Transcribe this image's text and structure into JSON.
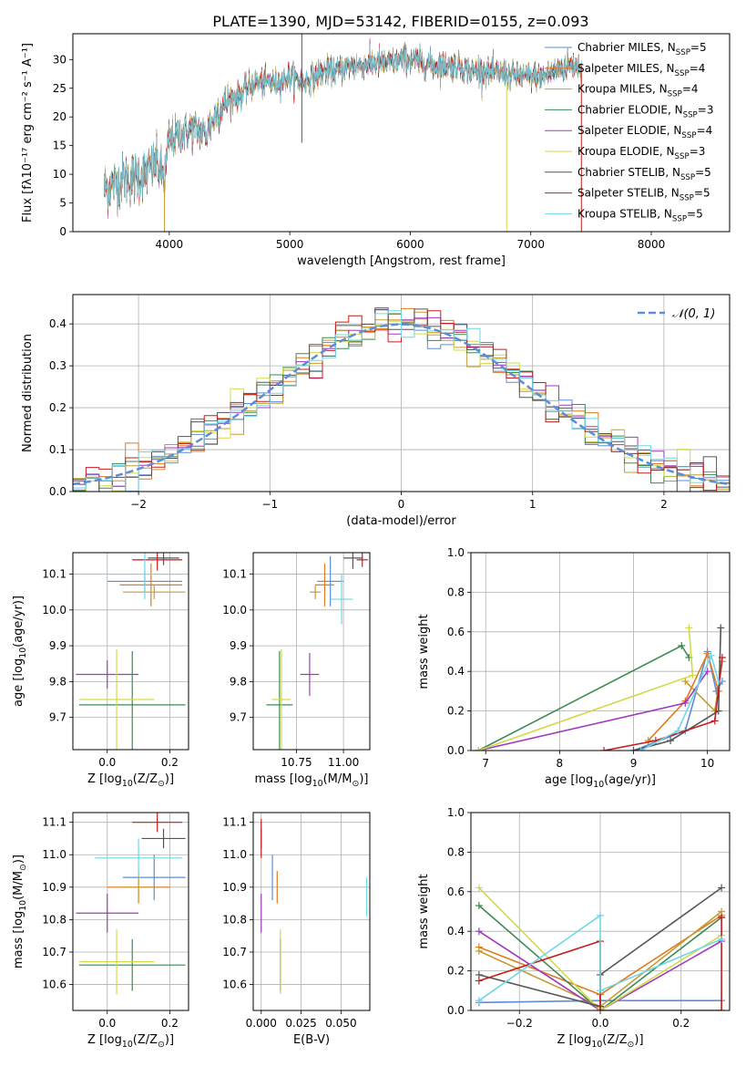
{
  "figure": {
    "title": "PLATE=1390, MJD=53142, FIBERID=0155, z=0.093"
  },
  "colors": [
    "#5c8dd9",
    "#e07b1f",
    "#c69b33",
    "#3d8a52",
    "#a03bbd",
    "#d4d94a",
    "#555555",
    "#c41e1e",
    "#6ed8e8"
  ],
  "chart_data": [
    {
      "id": "spectrum",
      "type": "line",
      "xlabel": "wavelength [Angstrom, rest frame]",
      "ylabel": "Flux [f$_\\lambda$10$^{-17}$ erg cm$^{-2}$ s$^{-1}$ A$^{-1}$]",
      "ylabel_display": "Flux [fλ10⁻¹⁷ erg cm⁻² s⁻¹ A⁻¹]",
      "xlim": [
        3200,
        8650
      ],
      "ylim": [
        0,
        34.5
      ],
      "xticks": [
        4000,
        5000,
        6000,
        7000,
        8000
      ],
      "yticks": [
        0,
        5,
        10,
        15,
        20,
        25,
        30
      ],
      "x_range_data": [
        3460,
        7420
      ],
      "continuum": [
        [
          3460,
          7.5
        ],
        [
          3600,
          9
        ],
        [
          3700,
          9.5
        ],
        [
          3800,
          10
        ],
        [
          3900,
          12
        ],
        [
          3960,
          9
        ],
        [
          4000,
          16
        ],
        [
          4100,
          17
        ],
        [
          4200,
          18
        ],
        [
          4300,
          17
        ],
        [
          4400,
          21
        ],
        [
          4500,
          23
        ],
        [
          4600,
          24
        ],
        [
          4700,
          26
        ],
        [
          4800,
          26
        ],
        [
          4900,
          26
        ],
        [
          5000,
          27
        ],
        [
          5100,
          26
        ],
        [
          5200,
          27
        ],
        [
          5300,
          28
        ],
        [
          5400,
          28
        ],
        [
          5500,
          29
        ],
        [
          5600,
          29
        ],
        [
          5700,
          29.5
        ],
        [
          5800,
          29
        ],
        [
          5900,
          30
        ],
        [
          6000,
          30
        ],
        [
          6100,
          29.5
        ],
        [
          6200,
          29
        ],
        [
          6300,
          29
        ],
        [
          6400,
          29
        ],
        [
          6500,
          28
        ],
        [
          6600,
          28
        ],
        [
          6700,
          27.5
        ],
        [
          6800,
          27.5
        ],
        [
          6900,
          27
        ],
        [
          7000,
          27
        ],
        [
          7100,
          27
        ],
        [
          7200,
          28
        ],
        [
          7300,
          29
        ],
        [
          7420,
          29
        ]
      ],
      "features": [
        [
          5100,
          34.5
        ],
        [
          5100,
          15.5
        ],
        [
          6800,
          0
        ],
        [
          3960,
          0
        ],
        [
          3500,
          0
        ],
        [
          7420,
          0
        ]
      ],
      "legend": {
        "location": "top-right",
        "entries": [
          "Chabrier MILES, N$_{SSP}$=5",
          "Salpeter MILES, N$_{SSP}$=4",
          "Kroupa MILES, N$_{SSP}$=4",
          "Chabrier ELODIE, N$_{SSP}$=3",
          "Salpeter ELODIE, N$_{SSP}$=4",
          "Kroupa ELODIE, N$_{SSP}$=3",
          "Chabrier STELIB, N$_{SSP}$=5",
          "Salpeter STELIB, N$_{SSP}$=5",
          "Kroupa STELIB, N$_{SSP}$=5"
        ]
      }
    },
    {
      "id": "residual-histogram",
      "type": "bar",
      "xlabel": "(data-model)/error",
      "ylabel": "Normed distribution",
      "xlim": [
        -2.5,
        2.5
      ],
      "ylim": [
        0,
        0.47
      ],
      "xticks": [
        -2,
        -1,
        0,
        1,
        2
      ],
      "yticks": [
        0.0,
        0.1,
        0.2,
        0.3,
        0.4
      ],
      "grid": true,
      "reference_curve": {
        "label": "$\\mathcal{N}(0,1)$",
        "label_display": "𝒩(0, 1)",
        "mean": 0,
        "sigma": 1,
        "style": "dashed"
      },
      "bin_width": 0.1,
      "legend": {
        "location": "top-right"
      }
    },
    {
      "id": "age-vs-metallicity",
      "type": "scatter",
      "xlabel": "Z [log$_{10}$(Z/Z$_\\odot$)]",
      "ylabel": "age  [log$_{10}$(age/yr)]",
      "xlim": [
        -0.11,
        0.26
      ],
      "ylim": [
        9.61,
        10.16
      ],
      "xticks": [
        0.0,
        0.2
      ],
      "yticks": [
        9.7,
        9.8,
        9.9,
        10.0,
        10.1
      ],
      "grid": true,
      "points": [
        {
          "x": 0.12,
          "y": 10.08,
          "xerr": 0.12,
          "yerr": 0.03
        },
        {
          "x": 0.14,
          "y": 10.07,
          "xerr": 0.1,
          "yerr": 0.06
        },
        {
          "x": 0.15,
          "y": 10.05,
          "xerr": 0.1,
          "yerr": 0.02
        },
        {
          "x": 0.08,
          "y": 9.735,
          "xerr": 0.17,
          "yerr": 0.15
        },
        {
          "x": 0.0,
          "y": 9.82,
          "xerr": 0.1,
          "yerr": 0.04
        },
        {
          "x": 0.03,
          "y": 9.75,
          "xerr": 0.12,
          "yerr": 0.14
        },
        {
          "x": 0.18,
          "y": 10.145,
          "xerr": 0.05,
          "yerr": 0.02
        },
        {
          "x": 0.16,
          "y": 10.14,
          "xerr": 0.08,
          "yerr": 0.03
        },
        {
          "x": 0.12,
          "y": 10.1,
          "xerr": 0.12,
          "yerr": 0.07
        }
      ]
    },
    {
      "id": "age-vs-mass",
      "type": "scatter",
      "xlabel": "mass [log$_{10}$(M/M$_\\odot$)]",
      "ylabel": "",
      "xlim": [
        10.52,
        11.14
      ],
      "ylim": [
        9.61,
        10.16
      ],
      "xticks": [
        10.75,
        11.0
      ],
      "yticks": [
        9.7,
        9.8,
        9.9,
        10.0,
        10.1
      ],
      "grid": true,
      "points": [
        {
          "x": 10.93,
          "y": 10.08,
          "xerr": 0.07,
          "yerr": 0.07
        },
        {
          "x": 10.9,
          "y": 10.07,
          "xerr": 0.05,
          "yerr": 0.06
        },
        {
          "x": 10.85,
          "y": 10.05,
          "xerr": 0.03,
          "yerr": 0.02
        },
        {
          "x": 10.66,
          "y": 9.735,
          "xerr": 0.07,
          "yerr": 0.15
        },
        {
          "x": 10.82,
          "y": 9.82,
          "xerr": 0.05,
          "yerr": 0.06
        },
        {
          "x": 10.67,
          "y": 9.75,
          "xerr": 0.05,
          "yerr": 0.14
        },
        {
          "x": 11.05,
          "y": 10.145,
          "xerr": 0.05,
          "yerr": 0.03
        },
        {
          "x": 11.1,
          "y": 10.14,
          "xerr": 0.03,
          "yerr": 0.02
        },
        {
          "x": 10.99,
          "y": 10.03,
          "xerr": 0.06,
          "yerr": 0.07
        }
      ]
    },
    {
      "id": "mass-weight-vs-age",
      "type": "line",
      "xlabel": "age  [log$_{10}$(age/yr)]",
      "ylabel": "mass weight",
      "xlim": [
        6.8,
        10.3
      ],
      "ylim": [
        0,
        1.0
      ],
      "xticks": [
        7,
        8,
        9,
        10
      ],
      "yticks": [
        0.0,
        0.2,
        0.4,
        0.6,
        0.8,
        1.0
      ],
      "grid": true,
      "series": [
        {
          "points": [
            [
              9.0,
              0.0
            ],
            [
              9.7,
              0.1
            ],
            [
              10.0,
              0.5
            ],
            [
              10.12,
              0.3
            ],
            [
              10.2,
              0.35
            ]
          ]
        },
        {
          "points": [
            [
              9.2,
              0.05
            ],
            [
              9.7,
              0.25
            ],
            [
              10.0,
              0.49
            ],
            [
              10.15,
              0.3
            ]
          ]
        },
        {
          "points": [
            [
              9.7,
              0.35
            ],
            [
              10.1,
              0.2
            ],
            [
              10.2,
              0.45
            ]
          ]
        },
        {
          "points": [
            [
              6.9,
              0.0
            ],
            [
              9.65,
              0.53
            ],
            [
              9.75,
              0.47
            ]
          ]
        },
        {
          "points": [
            [
              6.9,
              0.0
            ],
            [
              9.7,
              0.24
            ],
            [
              10.0,
              0.4
            ]
          ]
        },
        {
          "points": [
            [
              6.9,
              0.0
            ],
            [
              9.8,
              0.38
            ],
            [
              9.75,
              0.62
            ]
          ]
        },
        {
          "points": [
            [
              9.0,
              0.0
            ],
            [
              9.5,
              0.05
            ],
            [
              10.15,
              0.2
            ],
            [
              10.18,
              0.62
            ]
          ]
        },
        {
          "points": [
            [
              8.6,
              0.0
            ],
            [
              9.3,
              0.05
            ],
            [
              10.1,
              0.15
            ],
            [
              10.2,
              0.47
            ]
          ]
        },
        {
          "points": [
            [
              9.1,
              0.0
            ],
            [
              9.6,
              0.1
            ],
            [
              10.05,
              0.48
            ],
            [
              10.15,
              0.35
            ]
          ]
        }
      ]
    },
    {
      "id": "mass-vs-metallicity",
      "type": "scatter",
      "xlabel": "Z [log$_{10}$(Z/Z$_\\odot$)]",
      "ylabel": "mass [log$_{10}$(M/M$_\\odot$)]",
      "xlim": [
        -0.11,
        0.26
      ],
      "ylim": [
        10.52,
        11.13
      ],
      "xticks": [
        0.0,
        0.2
      ],
      "yticks": [
        10.6,
        10.7,
        10.8,
        10.9,
        11.0,
        11.1
      ],
      "grid": true,
      "points": [
        {
          "x": 0.15,
          "y": 10.93,
          "xerr": 0.1,
          "yerr": 0.07
        },
        {
          "x": 0.1,
          "y": 10.9,
          "xerr": 0.1,
          "yerr": 0.05
        },
        {
          "x": 0.1,
          "y": 10.9,
          "xerr": 0.05,
          "yerr": 0.03
        },
        {
          "x": 0.08,
          "y": 10.66,
          "xerr": 0.17,
          "yerr": 0.08
        },
        {
          "x": 0.0,
          "y": 10.82,
          "xerr": 0.1,
          "yerr": 0.06
        },
        {
          "x": 0.03,
          "y": 10.67,
          "xerr": 0.12,
          "yerr": 0.1
        },
        {
          "x": 0.18,
          "y": 11.05,
          "xerr": 0.07,
          "yerr": 0.03
        },
        {
          "x": 0.16,
          "y": 11.1,
          "xerr": 0.08,
          "yerr": 0.03
        },
        {
          "x": 0.1,
          "y": 10.99,
          "xerr": 0.14,
          "yerr": 0.06
        }
      ]
    },
    {
      "id": "mass-vs-extinction",
      "type": "scatter",
      "xlabel": "E(B-V)",
      "ylabel": "",
      "xlim": [
        -0.005,
        0.068
      ],
      "ylim": [
        10.52,
        11.13
      ],
      "xticks": [
        0.0,
        0.025,
        0.05
      ],
      "xticklabels": [
        "0.000",
        "0.025",
        "0.050"
      ],
      "yticks": [
        10.6,
        10.7,
        10.8,
        10.9,
        11.0,
        11.1
      ],
      "grid": true,
      "points": [
        {
          "x": 0.007,
          "y": 10.93,
          "xerr": 0,
          "yerr": 0.07
        },
        {
          "x": 0.01,
          "y": 10.9,
          "xerr": 0,
          "yerr": 0.05
        },
        {
          "x": 0.012,
          "y": 10.66,
          "xerr": 0,
          "yerr": 0.08
        },
        {
          "x": 0.012,
          "y": 10.66,
          "xerr": 0,
          "yerr": 0.08
        },
        {
          "x": 0.0,
          "y": 10.82,
          "xerr": 0,
          "yerr": 0.06
        },
        {
          "x": 0.012,
          "y": 10.67,
          "xerr": 0,
          "yerr": 0.1
        },
        {
          "x": 0.0,
          "y": 11.05,
          "xerr": 0,
          "yerr": 0.03
        },
        {
          "x": 0.0,
          "y": 11.05,
          "xerr": 0,
          "yerr": 0.06
        },
        {
          "x": 0.066,
          "y": 10.87,
          "xerr": 0,
          "yerr": 0.06
        }
      ]
    },
    {
      "id": "mass-weight-vs-metallicity",
      "type": "line",
      "xlabel": "Z [log$_{10}$(Z/Z$_\\odot$)]",
      "ylabel": "mass weight",
      "xlim": [
        -0.32,
        0.32
      ],
      "ylim": [
        0,
        1.0
      ],
      "xticks": [
        -0.2,
        0.0,
        0.2
      ],
      "yticks": [
        0.0,
        0.2,
        0.4,
        0.6,
        0.8,
        1.0
      ],
      "grid": true,
      "series": [
        {
          "points": [
            [
              -0.3,
              0.04
            ],
            [
              0.0,
              0.05
            ],
            [
              0.3,
              0.05
            ]
          ]
        },
        {
          "points": [
            [
              -0.3,
              0.32
            ],
            [
              0.0,
              0.08
            ],
            [
              0.3,
              0.48
            ]
          ]
        },
        {
          "points": [
            [
              -0.3,
              0.3
            ],
            [
              0.0,
              0.02
            ],
            [
              0.3,
              0.5
            ]
          ]
        },
        {
          "points": [
            [
              -0.3,
              0.53
            ],
            [
              0.0,
              0.0
            ],
            [
              0.3,
              0.47
            ]
          ]
        },
        {
          "points": [
            [
              -0.3,
              0.4
            ],
            [
              0.0,
              0.0
            ],
            [
              0.3,
              0.35
            ]
          ]
        },
        {
          "points": [
            [
              -0.3,
              0.62
            ],
            [
              0.0,
              0.0
            ],
            [
              0.3,
              0.38
            ]
          ]
        },
        {
          "points": [
            [
              -0.3,
              0.18
            ],
            [
              0.0,
              0.02
            ],
            [
              0.0,
              0.18
            ],
            [
              0.3,
              0.62
            ]
          ]
        },
        {
          "points": [
            [
              -0.3,
              0.15
            ],
            [
              0.0,
              0.35
            ],
            [
              0.0,
              0.0
            ],
            [
              0.3,
              0.0
            ],
            [
              0.3,
              0.47
            ]
          ]
        },
        {
          "points": [
            [
              -0.3,
              0.05
            ],
            [
              0.0,
              0.48
            ],
            [
              0.0,
              0.1
            ],
            [
              0.3,
              0.36
            ]
          ]
        }
      ]
    }
  ]
}
